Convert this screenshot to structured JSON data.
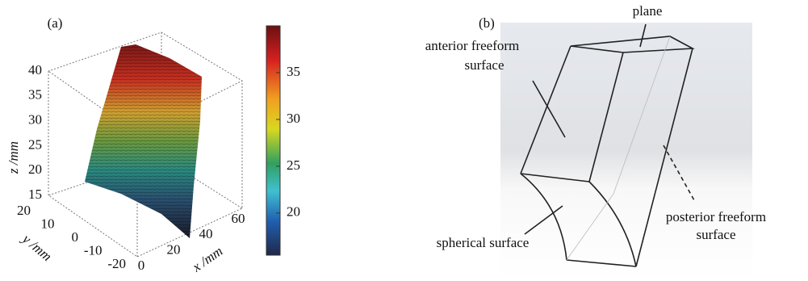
{
  "panel_a": {
    "label": "(a)",
    "z_label": "z /mm",
    "y_label": "y /mm",
    "x_label": "x /mm",
    "zticks": [
      15,
      20,
      25,
      30,
      35,
      40
    ],
    "yticks": [
      20,
      10,
      0,
      -10,
      -20
    ],
    "xticks": [
      0,
      20,
      40,
      60
    ],
    "colorbar_ticks": [
      20,
      25,
      30,
      35
    ]
  },
  "panel_b": {
    "label": "(b)",
    "plane": "plane",
    "anterior": [
      "anterior freeform",
      "surface"
    ],
    "posterior": [
      "posterior freeform",
      "surface"
    ],
    "spherical": "spherical surface"
  }
}
